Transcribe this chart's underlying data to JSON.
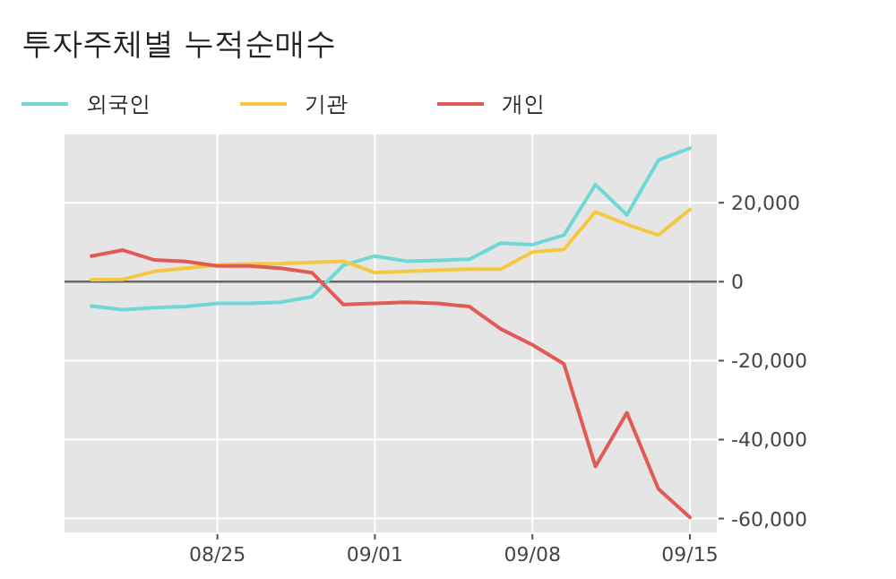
{
  "chart_data": {
    "type": "line",
    "title": "투자주체별 누적순매수",
    "categories": [
      null,
      null,
      null,
      null,
      "08/25",
      null,
      null,
      null,
      null,
      "09/01",
      null,
      null,
      null,
      null,
      "09/08",
      null,
      null,
      null,
      null,
      "09/15"
    ],
    "series": [
      {
        "name": "외국인",
        "color": "#6fd8d6",
        "values": [
          -6200,
          -7100,
          -6600,
          -6300,
          -5500,
          -5500,
          -5200,
          -3800,
          4200,
          6500,
          5200,
          5400,
          5700,
          9800,
          9400,
          11800,
          24600,
          16900,
          30800,
          33800
        ]
      },
      {
        "name": "기관",
        "color": "#f5c842",
        "values": [
          500,
          600,
          2600,
          3400,
          4200,
          4500,
          4600,
          4900,
          5200,
          2300,
          2600,
          2900,
          3200,
          3200,
          7500,
          8200,
          17700,
          14500,
          11800,
          18300
        ]
      },
      {
        "name": "개인",
        "color": "#e05a56",
        "values": [
          6500,
          8000,
          5500,
          5100,
          4000,
          4000,
          3400,
          2300,
          -5800,
          -5500,
          -5200,
          -5500,
          -6300,
          -12000,
          -16000,
          -20800,
          -46800,
          -33200,
          -52500,
          -59700
        ]
      }
    ],
    "ylim": [
      -63500,
      37300
    ],
    "yticks": [
      {
        "value": -60000,
        "label": "-60,000"
      },
      {
        "value": -40000,
        "label": "-40,000"
      },
      {
        "value": -20000,
        "label": "-20,000"
      },
      0,
      {
        "value": 20000,
        "label": "20,000"
      }
    ],
    "ref_lines": [
      {
        "axis": "y",
        "value": 0,
        "color": "#666666"
      }
    ],
    "grid": true,
    "legend": "top left",
    "marker": "none",
    "line_style": "solid"
  }
}
